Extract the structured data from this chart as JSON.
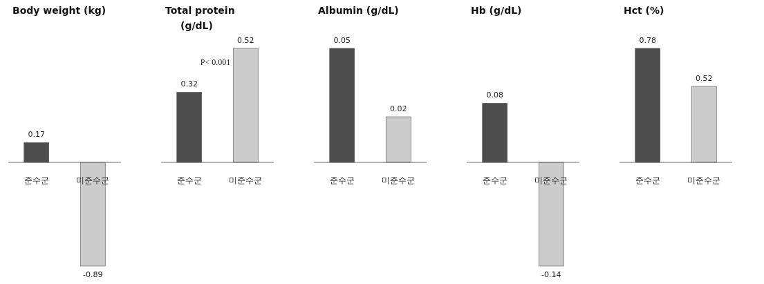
{
  "chart_data": [
    {
      "type": "bar",
      "title": "Body weight (kg)",
      "categories": [
        "준수군",
        "미준수군"
      ],
      "values": [
        0.17,
        -0.89
      ],
      "colors": [
        "#4d4d4d",
        "#cccccc"
      ],
      "data_labels": true
    },
    {
      "type": "bar",
      "title": "Total protein (g/dL)",
      "categories": [
        "준수군",
        "미준수군"
      ],
      "values": [
        0.32,
        0.52
      ],
      "colors": [
        "#4d4d4d",
        "#cccccc"
      ],
      "data_labels": true,
      "annotations": [
        "P< 0.001"
      ]
    },
    {
      "type": "bar",
      "title": "Albumin (g/dL)",
      "categories": [
        "준수군",
        "미준수군"
      ],
      "values": [
        0.05,
        0.02
      ],
      "colors": [
        "#4d4d4d",
        "#cccccc"
      ],
      "data_labels": true
    },
    {
      "type": "bar",
      "title": "Hb (g/dL)",
      "categories": [
        "준수군",
        "미준수군"
      ],
      "values": [
        0.08,
        -0.14
      ],
      "colors": [
        "#4d4d4d",
        "#cccccc"
      ],
      "data_labels": true
    },
    {
      "type": "bar",
      "title": "Hct (%)",
      "categories": [
        "준수군",
        "미준수군"
      ],
      "values": [
        0.78,
        0.52
      ],
      "colors": [
        "#4d4d4d",
        "#cccccc"
      ],
      "data_labels": true
    }
  ]
}
